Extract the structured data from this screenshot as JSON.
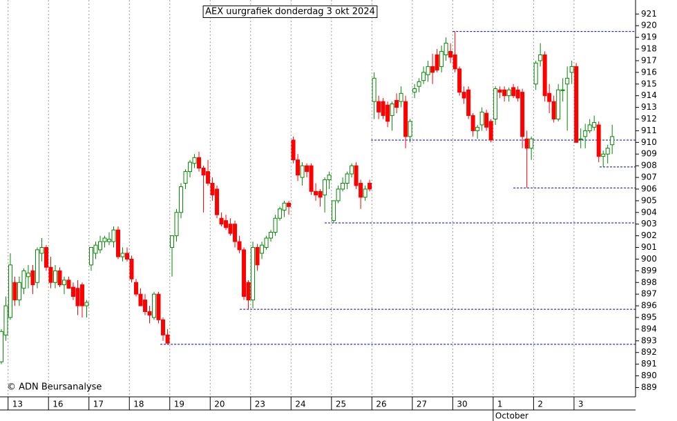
{
  "chart_data": {
    "type": "candlestick",
    "title": "AEX uurgrafiek donderdag 3 okt 2024",
    "credit": "© ADN Beursanalyse",
    "x": [
      -2,
      -1,
      0,
      1,
      2,
      3,
      4,
      5,
      6,
      7,
      8,
      9,
      10,
      11,
      12,
      13,
      14,
      15,
      16,
      17,
      18,
      19,
      20,
      21,
      22,
      23,
      24,
      25,
      26,
      27,
      28,
      29,
      30,
      31,
      32,
      33,
      34,
      35,
      36,
      37,
      38,
      39,
      40,
      41,
      42,
      43,
      44,
      45,
      46,
      47,
      48,
      49,
      50,
      51,
      52,
      53,
      54,
      55,
      56,
      57,
      58,
      59,
      60,
      61,
      62,
      63,
      64,
      65,
      66,
      67,
      68,
      69,
      70,
      71,
      72,
      73,
      74,
      75,
      76,
      77,
      78,
      79,
      80,
      81,
      82,
      83,
      84,
      85,
      86,
      87,
      88,
      89,
      90,
      91,
      92,
      93,
      94,
      95,
      96,
      97,
      98,
      99,
      100,
      101,
      102,
      103,
      104,
      105,
      106,
      107,
      108,
      109,
      110,
      111,
      112,
      113,
      114,
      115,
      116,
      117,
      118,
      119,
      120,
      121,
      122,
      123,
      124,
      125,
      126,
      127,
      128,
      129,
      130,
      131,
      132,
      133,
      134
    ],
    "open": [
      891.2,
      893.5,
      895,
      898,
      896.5,
      897.5,
      898.5,
      899,
      898,
      900.5,
      901,
      899.3,
      898,
      899,
      897.8,
      898.2,
      897.6,
      897.5,
      897.8,
      896,
      899.5,
      900.5,
      900.8,
      901.5,
      901.5,
      901.5,
      902.5,
      900.2,
      900.5,
      900,
      898,
      897,
      896.5,
      895.5,
      895,
      897,
      894.8,
      893.5,
      901,
      902,
      904,
      906.5,
      907.5,
      908.2,
      908.7,
      907.8,
      907.5,
      906.5,
      906,
      903.5,
      903.3,
      903,
      903,
      901.5,
      900.8,
      898,
      896.5,
      901,
      900.5,
      901,
      901.8,
      902.3,
      903.5,
      904.2,
      904.8,
      910.2,
      908.5,
      907,
      908,
      908,
      905.8,
      905.8,
      905.5,
      906.8,
      903.3,
      905,
      906,
      906.5,
      907.3,
      908,
      906.5,
      905.3,
      906.5,
      913.5,
      913.5,
      913.5,
      913.2,
      912.3,
      913.6,
      913.5,
      913.5,
      910.5,
      914.3,
      914.8,
      915.3,
      915.8,
      916.5,
      917.5,
      916.5,
      917.5,
      917.8,
      917.5,
      916.3,
      914.3,
      914.5,
      912.3,
      911,
      911.5,
      912.5,
      911.8,
      912,
      914.5,
      914.5,
      914,
      914.7,
      914.5,
      914.3,
      910.3,
      909.5,
      915,
      917,
      917.5,
      914.2,
      913.5,
      912,
      914.5,
      915,
      916,
      916.5,
      910.3,
      910.5,
      911,
      911.3,
      911.5,
      908.8,
      909,
      909.8
    ],
    "high": [
      894,
      896.8,
      900.5,
      898.5,
      898.5,
      899.2,
      899.5,
      899.5,
      901,
      901.8,
      901.2,
      900.2,
      899.5,
      899.3,
      898.5,
      898.5,
      898,
      898.2,
      898,
      896.5,
      901,
      901.5,
      902,
      902,
      902.3,
      902.8,
      902.8,
      901,
      901,
      900.3,
      898.3,
      897.5,
      897,
      896,
      897.2,
      897.2,
      895,
      894,
      902,
      904.3,
      906.5,
      907.7,
      908.5,
      909,
      909.2,
      908,
      908.5,
      907,
      906.3,
      904,
      903.8,
      903.5,
      903.3,
      902,
      901,
      898.2,
      901.5,
      901.3,
      901.5,
      902,
      902.5,
      903.8,
      904.5,
      905,
      905,
      910.5,
      909,
      908.3,
      908.2,
      908.2,
      906.5,
      906,
      907,
      907.5,
      905,
      906.3,
      907,
      907.5,
      908.2,
      908.3,
      906.8,
      906.3,
      906.8,
      916,
      914,
      913.8,
      913.5,
      913.5,
      914.2,
      914.8,
      914,
      912,
      915,
      915.5,
      916.5,
      917,
      917.6,
      918,
      918.3,
      919,
      918.5,
      919.5,
      916.5,
      914.8,
      914.8,
      912.5,
      911.5,
      913,
      912.8,
      912,
      914.8,
      914.8,
      914.8,
      914.7,
      915,
      914.8,
      914.6,
      911,
      910.5,
      917,
      918.5,
      917.8,
      915,
      914,
      915,
      915.5,
      916.5,
      917,
      916.8,
      911.2,
      911.6,
      912,
      912.3,
      911.8,
      909.3,
      909.8,
      911.5
    ],
    "low": [
      891,
      893,
      894.8,
      896,
      896,
      897,
      897.5,
      897,
      897.5,
      899.8,
      899,
      897.5,
      897.5,
      897.6,
      897,
      897.5,
      896.5,
      895.2,
      895,
      895,
      899,
      900,
      900.5,
      901,
      901.2,
      901,
      900,
      899.8,
      899.8,
      898,
      896.8,
      896,
      895.2,
      894.5,
      894.8,
      894.5,
      893,
      892.7,
      898.5,
      901.5,
      903.5,
      906,
      907,
      907.8,
      907.5,
      904,
      906.3,
      905,
      903.5,
      902.8,
      902.5,
      902,
      901,
      900.5,
      896.5,
      895.7,
      895.8,
      899,
      900,
      900.8,
      901.5,
      902,
      903.3,
      903.6,
      903.8,
      908.2,
      906.7,
      906.3,
      907,
      905.5,
      905,
      904.5,
      904,
      906,
      903.1,
      904.8,
      905.8,
      906,
      907,
      906,
      904.3,
      905,
      905.8,
      912,
      912,
      912,
      911.3,
      911,
      912.5,
      913,
      909.5,
      910,
      913.8,
      914.3,
      915,
      915.2,
      915,
      916,
      916,
      917,
      916.8,
      916,
      914,
      913.3,
      912,
      910.5,
      910.3,
      911,
      911,
      910,
      911.5,
      913.8,
      913.5,
      913.5,
      913.8,
      913.5,
      909.5,
      906.1,
      908.5,
      914.5,
      916.5,
      913.5,
      912.5,
      911.7,
      911.8,
      913.5,
      911,
      915,
      910,
      909.5,
      909.5,
      910.8,
      911,
      908.3,
      907.9,
      908.2,
      909
    ],
    "close": [
      893.8,
      896,
      899.5,
      896.5,
      898,
      899,
      898.8,
      897.8,
      900.8,
      901,
      899.3,
      898,
      899,
      897.8,
      898.2,
      897.5,
      896.8,
      896,
      896,
      896.3,
      901,
      901.2,
      901.5,
      901.8,
      901.7,
      902.5,
      900.2,
      900.5,
      900,
      898.3,
      897,
      896,
      895.5,
      895.2,
      897,
      894.8,
      893.5,
      892.8,
      902,
      904,
      906.2,
      907.5,
      908.3,
      908.7,
      907.8,
      907.2,
      906.5,
      905.5,
      903.8,
      903,
      902.7,
      902.2,
      901.5,
      900.8,
      896.8,
      896.5,
      901,
      899.5,
      901.2,
      901.8,
      902.3,
      903.5,
      904.3,
      904.8,
      904.5,
      908.5,
      907.2,
      908,
      907.5,
      905.8,
      905.5,
      905.3,
      906.8,
      907.2,
      905,
      906,
      906.5,
      907.3,
      908,
      906.3,
      905.3,
      906,
      906,
      915.5,
      912.6,
      912.3,
      911.8,
      913.3,
      913,
      914.2,
      910.5,
      911.8,
      914.6,
      915.2,
      916,
      916.5,
      916,
      916.2,
      917.8,
      918.5,
      917.3,
      916.3,
      914.3,
      913.8,
      912.3,
      911,
      911.3,
      912.6,
      911.3,
      910.2,
      914.6,
      914.3,
      914,
      914.5,
      914,
      913.8,
      910.5,
      909.5,
      910.3,
      916.8,
      917.5,
      914,
      913.5,
      912,
      914.5,
      914.5,
      915.5,
      916.5,
      910,
      910.3,
      911,
      911.5,
      911.7,
      908.8,
      909,
      909.5,
      910.5
    ],
    "colors": {
      "up": "#008800",
      "down": "#ff0000",
      "level": "#0000aa"
    },
    "xlim": [
      -2.3,
      139.2
    ],
    "xticks": [
      {
        "value": -0.5,
        "label": "13"
      },
      {
        "value": 8.5,
        "label": "16"
      },
      {
        "value": 17.5,
        "label": "17"
      },
      {
        "value": 26.5,
        "label": "18"
      },
      {
        "value": 35.5,
        "label": "19"
      },
      {
        "value": 44.5,
        "label": "20"
      },
      {
        "value": 53.5,
        "label": "23"
      },
      {
        "value": 62.5,
        "label": "24"
      },
      {
        "value": 71.5,
        "label": "25"
      },
      {
        "value": 80.5,
        "label": "26"
      },
      {
        "value": 89.5,
        "label": "27"
      },
      {
        "value": 98.5,
        "label": "30"
      },
      {
        "value": 107.5,
        "label": "1"
      },
      {
        "value": 116.5,
        "label": "2"
      },
      {
        "value": 125.5,
        "label": "3"
      }
    ],
    "month_ticks": [
      {
        "value": 107.5,
        "label": "October"
      }
    ],
    "ylim": [
      888.2,
      922.2
    ],
    "yticks": [
      889,
      890,
      891,
      892,
      893,
      894,
      895,
      896,
      897,
      898,
      899,
      900,
      901,
      902,
      903,
      904,
      905,
      906,
      907,
      908,
      909,
      910,
      911,
      912,
      913,
      914,
      915,
      916,
      917,
      918,
      919,
      920,
      921
    ],
    "levels": [
      {
        "value": 919.5,
        "x_start": 98.5
      },
      {
        "value": 910.2,
        "x_start": 80.3
      },
      {
        "value": 907.9,
        "x_start": 131.2
      },
      {
        "value": 906.1,
        "x_start": 112
      },
      {
        "value": 903.1,
        "x_start": 70
      },
      {
        "value": 895.7,
        "x_start": 51.1
      },
      {
        "value": 892.7,
        "x_start": 33.4
      }
    ],
    "grid": true
  }
}
